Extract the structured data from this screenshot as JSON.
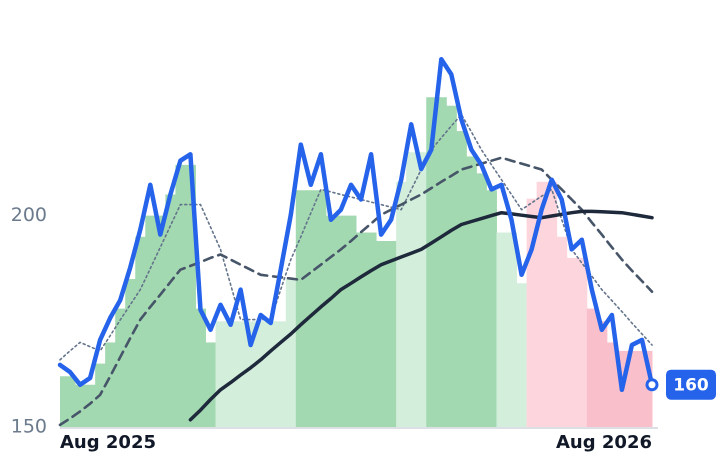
{
  "chart_data": {
    "type": "line",
    "categories": [
      "Aug 2025",
      null,
      null,
      null,
      null,
      null,
      null,
      null,
      null,
      null,
      null,
      null,
      null,
      null,
      null,
      null,
      null,
      null,
      null,
      null,
      null,
      null,
      null,
      null,
      null,
      null,
      null,
      null,
      null,
      null,
      null,
      null,
      null,
      null,
      null,
      null,
      null,
      null,
      null,
      null,
      null,
      null,
      null,
      null,
      null,
      null,
      null,
      null,
      null,
      null,
      null,
      null,
      null,
      null,
      null,
      null,
      null,
      null,
      null,
      "Aug 2026"
    ],
    "ylim": [
      150,
      251
    ],
    "yticks": [
      150,
      200
    ],
    "bands": {
      "values": [
        162,
        162,
        160,
        160,
        165,
        170,
        178,
        185,
        195,
        200,
        200,
        205,
        212,
        212,
        178,
        170,
        175,
        175,
        175,
        175,
        175,
        175,
        175,
        185,
        206,
        206,
        206,
        200,
        200,
        200,
        196,
        196,
        194,
        194,
        208,
        215,
        215,
        228,
        228,
        226,
        220,
        214,
        210,
        206,
        196,
        196,
        184,
        204,
        208,
        208,
        195,
        190,
        190,
        178,
        175,
        170,
        168,
        168,
        168,
        168
      ],
      "colors": [
        "#a3d9b1",
        "#a3d9b1",
        "#a3d9b1",
        "#a3d9b1",
        "#a3d9b1",
        "#a3d9b1",
        "#a3d9b1",
        "#a3d9b1",
        "#a3d9b1",
        "#a3d9b1",
        "#a3d9b1",
        "#a3d9b1",
        "#a3d9b1",
        "#a3d9b1",
        "#a3d9b1",
        "#a3d9b1",
        "#d4eedc",
        "#d4eedc",
        "#d4eedc",
        "#d4eedc",
        "#d4eedc",
        "#d4eedc",
        "#d4eedc",
        "#d4eedc",
        "#a3d9b1",
        "#a3d9b1",
        "#a3d9b1",
        "#a3d9b1",
        "#a3d9b1",
        "#a3d9b1",
        "#a3d9b1",
        "#a3d9b1",
        "#a3d9b1",
        "#a3d9b1",
        "#d4eedc",
        "#d4eedc",
        "#d4eedc",
        "#a3d9b1",
        "#a3d9b1",
        "#a3d9b1",
        "#a3d9b1",
        "#a3d9b1",
        "#a3d9b1",
        "#a3d9b1",
        "#d4eedc",
        "#d4eedc",
        "#d4eedc",
        "#fdd6dd",
        "#fdd6dd",
        "#fdd6dd",
        "#fdd6dd",
        "#fdd6dd",
        "#fdd6dd",
        "#f9c0cc",
        "#f9c0cc",
        "#f9c0cc",
        "#f9c0cc",
        "#f9c0cc",
        "#f9c0cc",
        "#f9c0cc"
      ]
    },
    "series": [
      {
        "color": "#64748b",
        "dash": "dotted",
        "values": [
          165.9,
          168,
          170,
          169,
          168,
          171.6,
          175.3,
          178.9,
          182.5,
          187.5,
          192.5,
          197.6,
          202.6,
          202.6,
          202.6,
          197.3,
          192,
          183.7,
          175.4,
          175.4,
          175.4,
          175.4,
          182.5,
          189.6,
          195,
          200.6,
          206.2,
          205.6,
          205,
          204.4,
          203.8,
          203.2,
          202.6,
          202,
          201.4,
          206.1,
          210.9,
          215.6,
          218.4,
          221.2,
          223.9,
          219.8,
          215.6,
          212,
          208.5,
          205,
          201.4,
          203,
          204.6,
          206.2,
          199.1,
          192,
          188.8,
          185.7,
          182.5,
          179.9,
          177.3,
          174.6,
          172,
          169.4
        ]
      },
      {
        "color": "#475569",
        "dash": "dashed",
        "values": [
          150.5,
          152,
          153.7,
          155.5,
          157.6,
          162,
          166.5,
          171,
          175.4,
          178.4,
          181.3,
          184.3,
          187.2,
          188.1,
          189,
          190,
          190.8,
          189.6,
          188.4,
          187.2,
          186,
          185.7,
          185.4,
          185.1,
          184.8,
          186.6,
          188.4,
          190.2,
          192,
          194,
          196.1,
          198.1,
          200.2,
          201.4,
          202.6,
          203.8,
          205,
          206.5,
          208,
          209.4,
          210.9,
          211.6,
          212.3,
          213,
          213.7,
          213,
          212.3,
          211.6,
          210.9,
          208.5,
          206.2,
          203.8,
          201.4,
          198.4,
          195.5,
          192.5,
          189.6,
          187,
          184.5,
          182
        ]
      },
      {
        "color": "#1e293b",
        "dash": "solid",
        "values": [
          null,
          null,
          null,
          null,
          null,
          null,
          null,
          null,
          null,
          null,
          null,
          null,
          null,
          151.7,
          154,
          156.5,
          158.8,
          160.5,
          162.3,
          164,
          165.9,
          168,
          170,
          172,
          174.2,
          176.3,
          178.4,
          180.4,
          182.5,
          184,
          185.5,
          187,
          188.4,
          189.3,
          190.2,
          191.1,
          192,
          193.5,
          195,
          196.5,
          197.9,
          198.6,
          199.3,
          200,
          200.7,
          200.4,
          200.1,
          199.8,
          199.5,
          199.9,
          200.3,
          200.7,
          201,
          201,
          200.9,
          200.8,
          200.7,
          200.3,
          199.9,
          199.5
        ]
      },
      {
        "color": "#2563eb",
        "dash": "solid",
        "values": [
          164.7,
          163,
          160,
          161.6,
          170.6,
          175.8,
          180,
          187.7,
          196.7,
          207.3,
          195.5,
          205,
          213,
          214.5,
          177.7,
          173,
          178.9,
          174.2,
          182.5,
          169.4,
          176.5,
          174.6,
          187.2,
          200.2,
          216.8,
          207.3,
          214.5,
          199,
          201.4,
          207.3,
          203.8,
          214.5,
          195.5,
          199,
          208.5,
          221.6,
          211,
          215.6,
          237,
          233.4,
          222.7,
          215.6,
          212,
          206.2,
          207.3,
          199,
          186,
          192,
          201.4,
          208.5,
          203.8,
          192,
          194.3,
          182.5,
          173,
          176.5,
          158.8,
          169.4,
          170.6,
          160
        ],
        "value_labels": [
          null,
          null,
          null,
          null,
          null,
          null,
          null,
          null,
          null,
          null,
          null,
          null,
          null,
          null,
          null,
          null,
          null,
          null,
          null,
          null,
          null,
          null,
          null,
          null,
          null,
          null,
          null,
          null,
          null,
          null,
          null,
          null,
          null,
          null,
          null,
          null,
          null,
          null,
          null,
          null,
          null,
          null,
          null,
          null,
          null,
          null,
          null,
          null,
          null,
          null,
          null,
          null,
          null,
          null,
          null,
          null,
          null,
          null,
          null,
          "160"
        ]
      }
    ]
  }
}
